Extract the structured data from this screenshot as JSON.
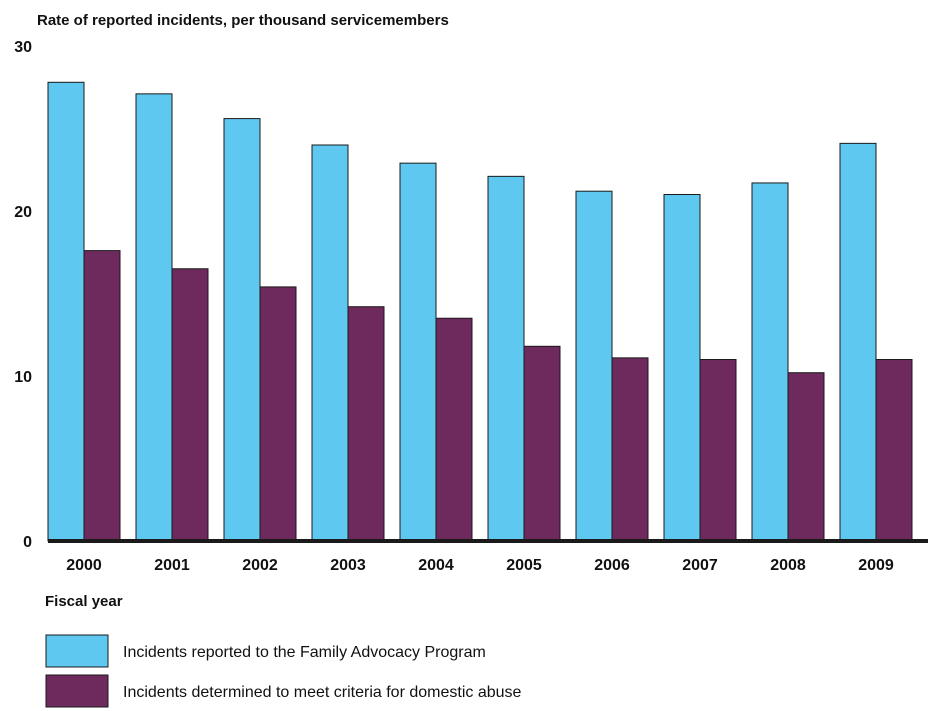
{
  "chart_data": {
    "type": "bar",
    "ylabel": "Rate of reported incidents, per thousand servicemembers",
    "xlabel": "Fiscal year",
    "ylim": [
      0,
      30
    ],
    "yticks": [
      "0",
      "10",
      "20",
      "30"
    ],
    "grid": false,
    "legend_position": "bottom-left",
    "categories": [
      "2000",
      "2001",
      "2002",
      "2003",
      "2004",
      "2005",
      "2006",
      "2007",
      "2008",
      "2009"
    ],
    "series": [
      {
        "name": "Incidents reported to the Family Advocacy Program",
        "color": "#5FC8F0",
        "values": [
          27.8,
          27.1,
          25.6,
          24.0,
          22.9,
          22.1,
          21.2,
          21.0,
          21.7,
          24.1
        ]
      },
      {
        "name": "Incidents determined to meet criteria for domestic abuse",
        "color": "#6E2A5C",
        "values": [
          17.6,
          16.5,
          15.4,
          14.2,
          13.5,
          11.8,
          11.1,
          11.0,
          10.2,
          11.0
        ]
      }
    ]
  }
}
